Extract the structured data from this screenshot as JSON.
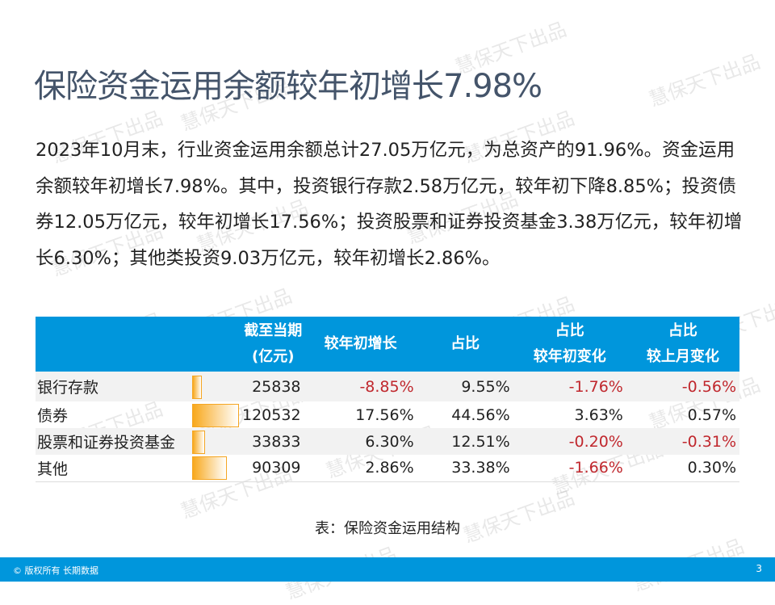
{
  "title": "保险资金运用余额较年初增长7.98%",
  "paragraph": "2023年10月末，行业资金运用余额总计27.05万亿元，为总资产的91.96%。资金运用余额较年初增长7.98%。其中，投资银行存款2.58万亿元，较年初下降8.85%；投资债券12.05万亿元，较年初增长17.56%；投资股票和证券投资基金3.38万亿元，较年初增长6.30%；其他类投资9.03万亿元，较年初增长2.86%。",
  "table": {
    "headers": [
      "",
      "截至当期\n(亿元)",
      "较年初增长",
      "占比",
      "占比\n较年初变化",
      "占比\n较上月变化"
    ],
    "rows": [
      {
        "label": "银行存款",
        "value": 25838,
        "growth": "-8.85%",
        "share": "9.55%",
        "ytd": "-1.76%",
        "mom": "-0.56%"
      },
      {
        "label": "债券",
        "value": 120532,
        "growth": "17.56%",
        "share": "44.56%",
        "ytd": "3.63%",
        "mom": "0.57%"
      },
      {
        "label": "股票和证券投资基金",
        "value": 33833,
        "growth": "6.30%",
        "share": "12.51%",
        "ytd": "-0.20%",
        "mom": "-0.31%"
      },
      {
        "label": "其他",
        "value": 90309,
        "growth": "2.86%",
        "share": "33.38%",
        "ytd": "-1.66%",
        "mom": "0.30%"
      }
    ]
  },
  "caption": "表：保险资金运用结构",
  "footer": {
    "copyright": "© 版权所有 长期数据",
    "page": "3"
  },
  "watermark": "慧保天下出品",
  "colors": {
    "header_bg": "#0096dc",
    "negative": "#c0272d",
    "bar": "#f8a81c"
  }
}
